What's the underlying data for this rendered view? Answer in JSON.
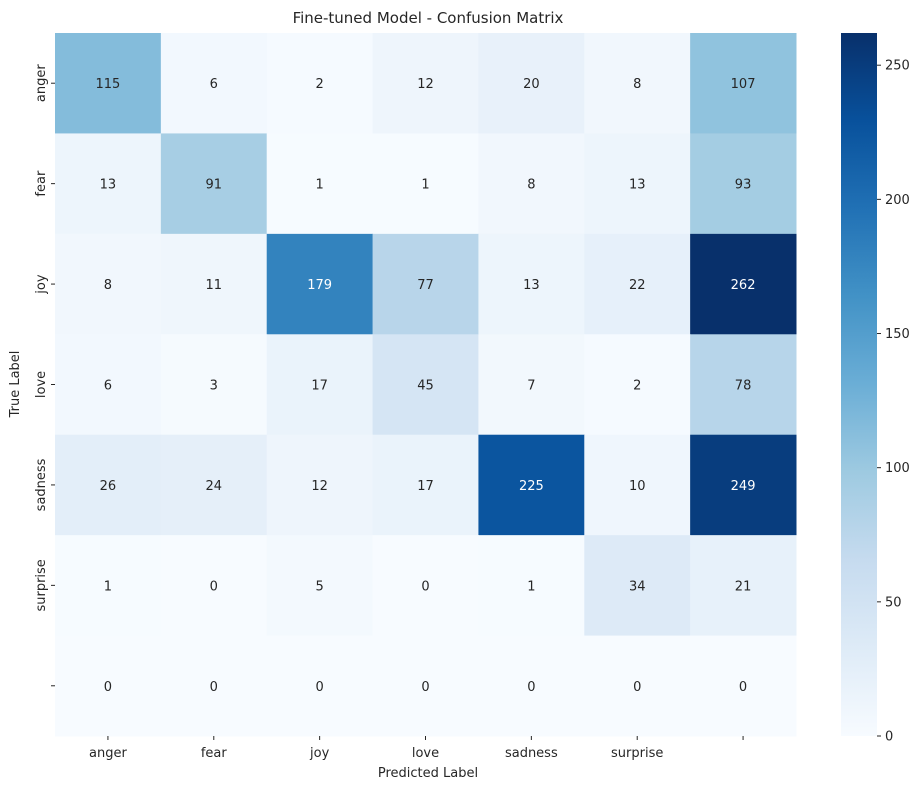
{
  "chart_data": {
    "type": "heatmap",
    "title": "Fine-tuned Model - Confusion Matrix",
    "xlabel": "Predicted Label",
    "ylabel": "True Label",
    "x_tick_labels": [
      "anger",
      "fear",
      "joy",
      "love",
      "sadness",
      "surprise",
      ""
    ],
    "y_tick_labels": [
      "anger",
      "fear",
      "joy",
      "love",
      "sadness",
      "surprise",
      ""
    ],
    "values": [
      [
        115,
        6,
        2,
        12,
        20,
        8,
        107
      ],
      [
        13,
        91,
        1,
        1,
        8,
        13,
        93
      ],
      [
        8,
        11,
        179,
        77,
        13,
        22,
        262
      ],
      [
        6,
        3,
        17,
        45,
        7,
        2,
        78
      ],
      [
        26,
        24,
        12,
        17,
        225,
        10,
        249
      ],
      [
        1,
        0,
        5,
        0,
        1,
        34,
        21
      ],
      [
        0,
        0,
        0,
        0,
        0,
        0,
        0
      ]
    ],
    "colormap": "Blues",
    "colorbar": {
      "min": 0,
      "max": 262,
      "ticks": [
        0,
        50,
        100,
        150,
        200,
        250
      ]
    },
    "grid": false
  }
}
